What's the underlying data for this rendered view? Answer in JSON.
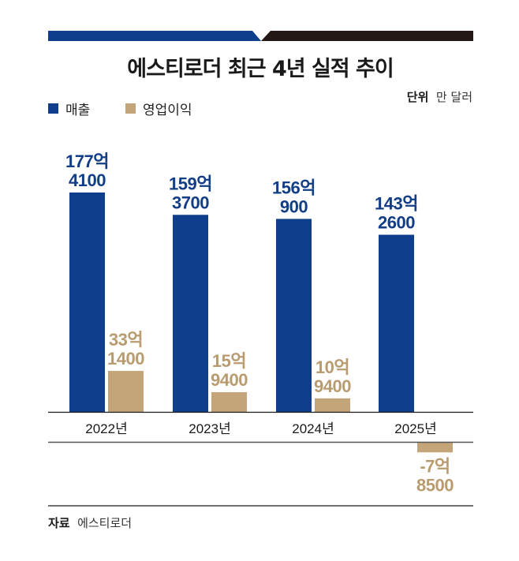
{
  "header": {
    "title": "에스티로더 최근 4년 실적 추이",
    "unit_label": "단위",
    "unit_value": "만 달러"
  },
  "colors": {
    "revenue": "#0f3f8c",
    "operating_profit": "#c4a57a",
    "header_bar_left": "#0f3f8c",
    "header_bar_right": "#231815"
  },
  "source": {
    "label": "자료",
    "value": "에스티로더"
  },
  "chart_data": {
    "type": "bar",
    "title": "에스티로더 최근 4년 실적 추이",
    "unit": "만 달러",
    "xlabel": "",
    "ylabel": "",
    "categories": [
      "2022년",
      "2023년",
      "2024년",
      "2025년"
    ],
    "legend": [
      "매출",
      "영업이익"
    ],
    "legend_position": "top-left",
    "grid": false,
    "series": [
      {
        "name": "매출",
        "values": [
          1774100,
          1593700,
          1560900,
          1432600
        ],
        "labels": [
          [
            "177억",
            "4100"
          ],
          [
            "159억",
            "3700"
          ],
          [
            "156억",
            "900"
          ],
          [
            "143억",
            "2600"
          ]
        ]
      },
      {
        "name": "영업이익",
        "values": [
          331400,
          159400,
          109400,
          -78500
        ],
        "labels": [
          [
            "33억",
            "1400"
          ],
          [
            "15억",
            "9400"
          ],
          [
            "10억",
            "9400"
          ],
          [
            "-7억",
            "8500"
          ]
        ]
      }
    ]
  }
}
